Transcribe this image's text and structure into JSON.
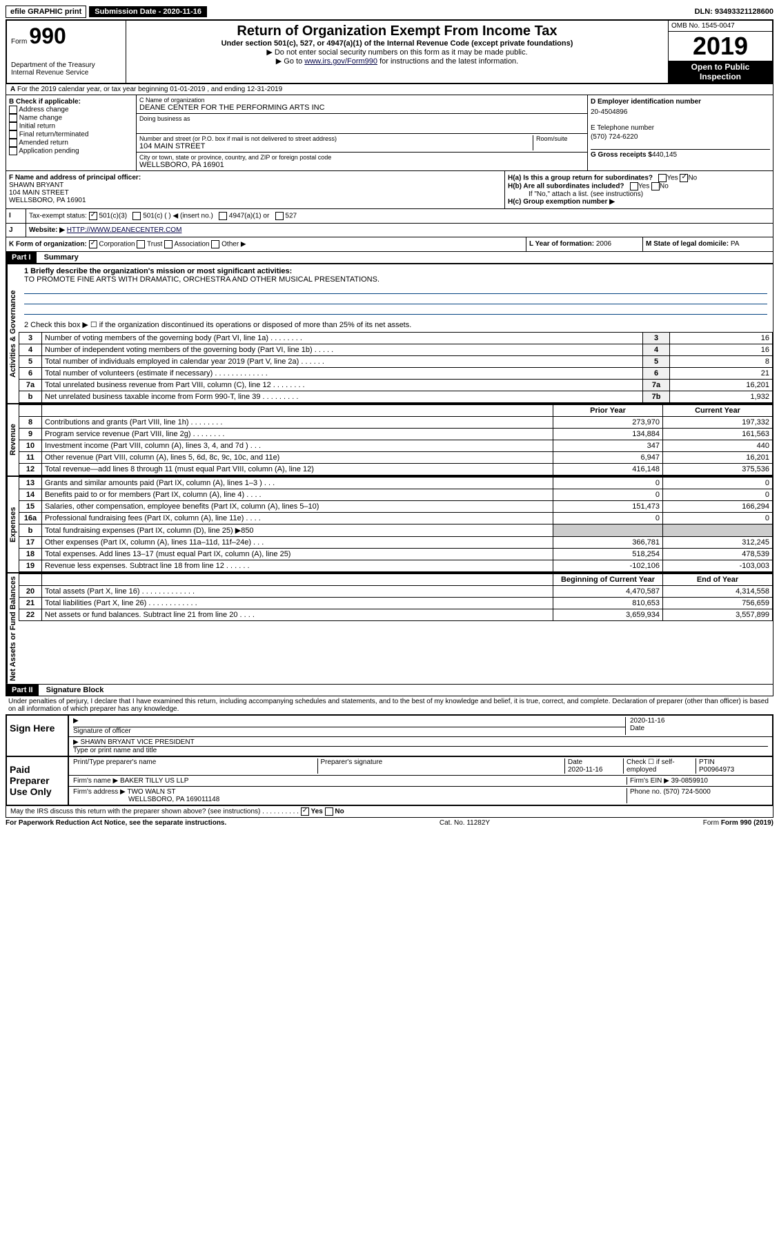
{
  "topbar": {
    "efile": "efile GRAPHIC print",
    "submission_label": "Submission Date - 2020-11-16",
    "dln": "DLN: 93493321128600"
  },
  "header": {
    "form_prefix": "Form",
    "form_number": "990",
    "dept": "Department of the Treasury\nInternal Revenue Service",
    "title": "Return of Organization Exempt From Income Tax",
    "subtitle1": "Under section 501(c), 527, or 4947(a)(1) of the Internal Revenue Code (except private foundations)",
    "subtitle2": "▶ Do not enter social security numbers on this form as it may be made public.",
    "subtitle3_a": "▶ Go to ",
    "subtitle3_link": "www.irs.gov/Form990",
    "subtitle3_b": " for instructions and the latest information.",
    "omb": "OMB No. 1545-0047",
    "year": "2019",
    "open_public": "Open to Public Inspection"
  },
  "section_a": "For the 2019 calendar year, or tax year beginning 01-01-2019   , and ending 12-31-2019",
  "section_b": {
    "label": "B Check if applicable:",
    "opts": [
      "Address change",
      "Name change",
      "Initial return",
      "Final return/terminated",
      "Amended return",
      "Application pending"
    ]
  },
  "section_c": {
    "name_label": "C Name of organization",
    "name": "DEANE CENTER FOR THE PERFORMING ARTS INC",
    "dba_label": "Doing business as",
    "addr_label": "Number and street (or P.O. box if mail is not delivered to street address)",
    "room_label": "Room/suite",
    "addr": "104 MAIN STREET",
    "city_label": "City or town, state or province, country, and ZIP or foreign postal code",
    "city": "WELLSBORO, PA  16901"
  },
  "section_d": {
    "label": "D Employer identification number",
    "ein": "20-4504896",
    "phone_label": "E Telephone number",
    "phone": "(570) 724-6220",
    "gross_label": "G Gross receipts $",
    "gross": "440,145"
  },
  "section_f": {
    "label": "F  Name and address of principal officer:",
    "name": "SHAWN BRYANT",
    "addr1": "104 MAIN STREET",
    "addr2": "WELLSBORO, PA  16901"
  },
  "section_h": {
    "ha": "H(a)  Is this a group return for subordinates?",
    "hb": "H(b)  Are all subordinates included?",
    "hb_note": "If \"No,\" attach a list. (see instructions)",
    "hc": "H(c)  Group exemption number ▶"
  },
  "section_i": {
    "label": "Tax-exempt status:",
    "opts": [
      "501(c)(3)",
      "501(c) (  ) ◀ (insert no.)",
      "4947(a)(1) or",
      "527"
    ]
  },
  "section_j": {
    "label": "Website: ▶",
    "url": "HTTP://WWW.DEANECENTER.COM"
  },
  "section_k": {
    "label": "K Form of organization:",
    "opts": [
      "Corporation",
      "Trust",
      "Association",
      "Other ▶"
    ],
    "l_label": "L Year of formation:",
    "l_val": "2006",
    "m_label": "M State of legal domicile:",
    "m_val": "PA"
  },
  "part1": {
    "header": "Part I",
    "title": "Summary",
    "line1_label": "1  Briefly describe the organization's mission or most significant activities:",
    "mission": "TO PROMOTE FINE ARTS WITH DRAMATIC, ORCHESTRA AND OTHER MUSICAL PRESENTATIONS.",
    "line2": "2    Check this box ▶ ☐  if the organization discontinued its operations or disposed of more than 25% of its net assets.",
    "governance_lines": [
      {
        "n": "3",
        "label": "Number of voting members of the governing body (Part VI, line 1a)  .   .   .   .   .   .   .   .",
        "box": "3",
        "val": "16"
      },
      {
        "n": "4",
        "label": "Number of independent voting members of the governing body (Part VI, line 1b)  .   .   .   .   .",
        "box": "4",
        "val": "16"
      },
      {
        "n": "5",
        "label": "Total number of individuals employed in calendar year 2019 (Part V, line 2a)  .   .   .   .   .   .",
        "box": "5",
        "val": "8"
      },
      {
        "n": "6",
        "label": "Total number of volunteers (estimate if necessary)   .   .   .   .   .   .   .   .   .   .   .   .   .",
        "box": "6",
        "val": "21"
      },
      {
        "n": "7a",
        "label": "Total unrelated business revenue from Part VIII, column (C), line 12  .   .   .   .   .   .   .   .",
        "box": "7a",
        "val": "16,201"
      },
      {
        "n": "b",
        "label": "Net unrelated business taxable income from Form 990-T, line 39  .   .   .   .   .   .   .   .   .",
        "box": "7b",
        "val": "1,932"
      }
    ],
    "prior_year_hdr": "Prior Year",
    "current_year_hdr": "Current Year",
    "revenue_lines": [
      {
        "n": "8",
        "label": "Contributions and grants (Part VIII, line 1h)   .   .   .   .   .   .   .   .",
        "py": "273,970",
        "cy": "197,332"
      },
      {
        "n": "9",
        "label": "Program service revenue (Part VIII, line 2g)   .   .   .   .   .   .   .   .",
        "py": "134,884",
        "cy": "161,563"
      },
      {
        "n": "10",
        "label": "Investment income (Part VIII, column (A), lines 3, 4, and 7d )  .   .   .",
        "py": "347",
        "cy": "440"
      },
      {
        "n": "11",
        "label": "Other revenue (Part VIII, column (A), lines 5, 6d, 8c, 9c, 10c, and 11e)",
        "py": "6,947",
        "cy": "16,201"
      },
      {
        "n": "12",
        "label": "Total revenue—add lines 8 through 11 (must equal Part VIII, column (A), line 12)",
        "py": "416,148",
        "cy": "375,536"
      }
    ],
    "expense_lines": [
      {
        "n": "13",
        "label": "Grants and similar amounts paid (Part IX, column (A), lines 1–3 )  .   .   .",
        "py": "0",
        "cy": "0"
      },
      {
        "n": "14",
        "label": "Benefits paid to or for members (Part IX, column (A), line 4)  .   .   .   .",
        "py": "0",
        "cy": "0"
      },
      {
        "n": "15",
        "label": "Salaries, other compensation, employee benefits (Part IX, column (A), lines 5–10)",
        "py": "151,473",
        "cy": "166,294"
      },
      {
        "n": "16a",
        "label": "Professional fundraising fees (Part IX, column (A), line 11e)   .   .   .   .",
        "py": "0",
        "cy": "0"
      },
      {
        "n": "b",
        "label": "Total fundraising expenses (Part IX, column (D), line 25) ▶850",
        "py": "",
        "cy": ""
      },
      {
        "n": "17",
        "label": "Other expenses (Part IX, column (A), lines 11a–11d, 11f–24e)  .   .   .",
        "py": "366,781",
        "cy": "312,245"
      },
      {
        "n": "18",
        "label": "Total expenses. Add lines 13–17 (must equal Part IX, column (A), line 25)",
        "py": "518,254",
        "cy": "478,539"
      },
      {
        "n": "19",
        "label": "Revenue less expenses. Subtract line 18 from line 12  .   .   .   .   .   .",
        "py": "-102,106",
        "cy": "-103,003"
      }
    ],
    "begin_year_hdr": "Beginning of Current Year",
    "end_year_hdr": "End of Year",
    "net_lines": [
      {
        "n": "20",
        "label": "Total assets (Part X, line 16)  .   .   .   .   .   .   .   .   .   .   .   .   .",
        "py": "4,470,587",
        "cy": "4,314,558"
      },
      {
        "n": "21",
        "label": "Total liabilities (Part X, line 26)   .   .   .   .   .   .   .   .   .   .   .   .",
        "py": "810,653",
        "cy": "756,659"
      },
      {
        "n": "22",
        "label": "Net assets or fund balances. Subtract line 21 from line 20  .   .   .   .",
        "py": "3,659,934",
        "cy": "3,557,899"
      }
    ],
    "vert_labels": {
      "gov": "Activities & Governance",
      "rev": "Revenue",
      "exp": "Expenses",
      "net": "Net Assets or Fund Balances"
    }
  },
  "part2": {
    "header": "Part II",
    "title": "Signature Block",
    "perjury": "Under penalties of perjury, I declare that I have examined this return, including accompanying schedules and statements, and to the best of my knowledge and belief, it is true, correct, and complete. Declaration of preparer (other than officer) is based on all information of which preparer has any knowledge.",
    "sign_here": "Sign Here",
    "sig_officer": "Signature of officer",
    "sig_date": "2020-11-16",
    "date_label": "Date",
    "officer_name": "SHAWN BRYANT  VICE PRESIDENT",
    "type_name": "Type or print name and title",
    "paid_prep": "Paid Preparer Use Only",
    "prep_name_label": "Print/Type preparer's name",
    "prep_sig_label": "Preparer's signature",
    "prep_date": "2020-11-16",
    "check_if": "Check ☐ if self-employed",
    "ptin_label": "PTIN",
    "ptin": "P00964973",
    "firm_name_label": "Firm's name   ▶",
    "firm_name": "BAKER TILLY US LLP",
    "firm_ein_label": "Firm's EIN ▶",
    "firm_ein": "39-0859910",
    "firm_addr_label": "Firm's address ▶",
    "firm_addr1": "TWO WALN ST",
    "firm_addr2": "WELLSBORO, PA  169011148",
    "firm_phone_label": "Phone no.",
    "firm_phone": "(570) 724-5000",
    "discuss": "May the IRS discuss this return with the preparer shown above? (see instructions)   .   .   .   .   .   .   .   .   .   .",
    "yes": "Yes",
    "no": "No"
  },
  "footer": {
    "pra": "For Paperwork Reduction Act Notice, see the separate instructions.",
    "cat": "Cat. No. 11282Y",
    "form": "Form 990 (2019)"
  }
}
